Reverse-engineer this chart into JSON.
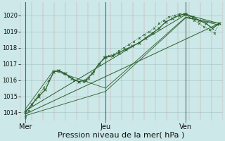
{
  "bg_color": "#cce8e8",
  "grid_color_h": "#aacccc",
  "grid_color_v": "#cc9999",
  "line_color": "#2a5e2a",
  "xlabel": "Pression niveau de la mer( hPa )",
  "xlabel_fontsize": 8,
  "yticks": [
    1014,
    1015,
    1016,
    1017,
    1018,
    1019,
    1020
  ],
  "ylim": [
    1013.5,
    1020.8
  ],
  "xlim": [
    0,
    121
  ],
  "xtick_labels": [
    "Mer",
    "Jeu",
    "Ven"
  ],
  "xtick_positions": [
    3,
    51,
    99
  ],
  "vline_x": [
    3,
    51,
    99
  ],
  "lines": [
    {
      "x": [
        3,
        5,
        7,
        9,
        11,
        14,
        17,
        20,
        23,
        26,
        29,
        32,
        35,
        38,
        41,
        44,
        47,
        50,
        53,
        56,
        59,
        62,
        65,
        68,
        71,
        74,
        77,
        80,
        83,
        86,
        89,
        92,
        95,
        98,
        101,
        104,
        107,
        110,
        113,
        116,
        119
      ],
      "y": [
        1013.7,
        1014.1,
        1014.5,
        1014.8,
        1015.1,
        1015.5,
        1016.0,
        1016.5,
        1016.6,
        1016.4,
        1016.2,
        1016.0,
        1015.9,
        1015.9,
        1016.1,
        1016.5,
        1017.0,
        1017.4,
        1017.5,
        1017.6,
        1017.8,
        1018.0,
        1018.2,
        1018.4,
        1018.6,
        1018.8,
        1019.0,
        1019.2,
        1019.5,
        1019.7,
        1019.9,
        1020.0,
        1020.1,
        1020.1,
        1019.9,
        1019.7,
        1019.5,
        1019.3,
        1019.1,
        1018.9,
        1019.5
      ],
      "lw": 0.7,
      "ls": ":",
      "marker": "x",
      "ms": 2.0,
      "mew": 0.6
    },
    {
      "x": [
        3,
        7,
        11,
        15,
        20,
        23,
        27,
        31,
        35,
        39,
        43,
        47,
        51,
        55,
        59,
        63,
        67,
        71,
        75,
        79,
        83,
        87,
        91,
        95,
        99,
        103,
        107,
        111,
        115,
        119
      ],
      "y": [
        1014.0,
        1014.5,
        1015.0,
        1015.4,
        1016.5,
        1016.6,
        1016.4,
        1016.1,
        1015.9,
        1016.0,
        1016.4,
        1017.0,
        1017.4,
        1017.5,
        1017.7,
        1017.9,
        1018.1,
        1018.3,
        1018.6,
        1018.9,
        1019.2,
        1019.6,
        1019.8,
        1020.0,
        1020.1,
        1019.9,
        1019.7,
        1019.5,
        1019.2,
        1019.5
      ],
      "lw": 0.9,
      "ls": "-",
      "marker": "x",
      "ms": 2.5,
      "mew": 0.7
    },
    {
      "x": [
        3,
        119
      ],
      "y": [
        1013.9,
        1019.5
      ],
      "lw": 0.7,
      "ls": "-",
      "marker": "None",
      "ms": 0,
      "mew": 0
    },
    {
      "x": [
        3,
        99,
        119
      ],
      "y": [
        1014.1,
        1020.05,
        1019.5
      ],
      "lw": 0.7,
      "ls": "-",
      "marker": "None",
      "ms": 0,
      "mew": 0
    },
    {
      "x": [
        3,
        20,
        51,
        99,
        119
      ],
      "y": [
        1014.2,
        1016.6,
        1015.5,
        1019.9,
        1019.4
      ],
      "lw": 0.6,
      "ls": "-",
      "marker": "None",
      "ms": 0,
      "mew": 0
    },
    {
      "x": [
        3,
        51,
        99,
        119
      ],
      "y": [
        1013.8,
        1015.3,
        1019.85,
        1019.5
      ],
      "lw": 0.6,
      "ls": "-",
      "marker": "None",
      "ms": 0,
      "mew": 0
    }
  ]
}
